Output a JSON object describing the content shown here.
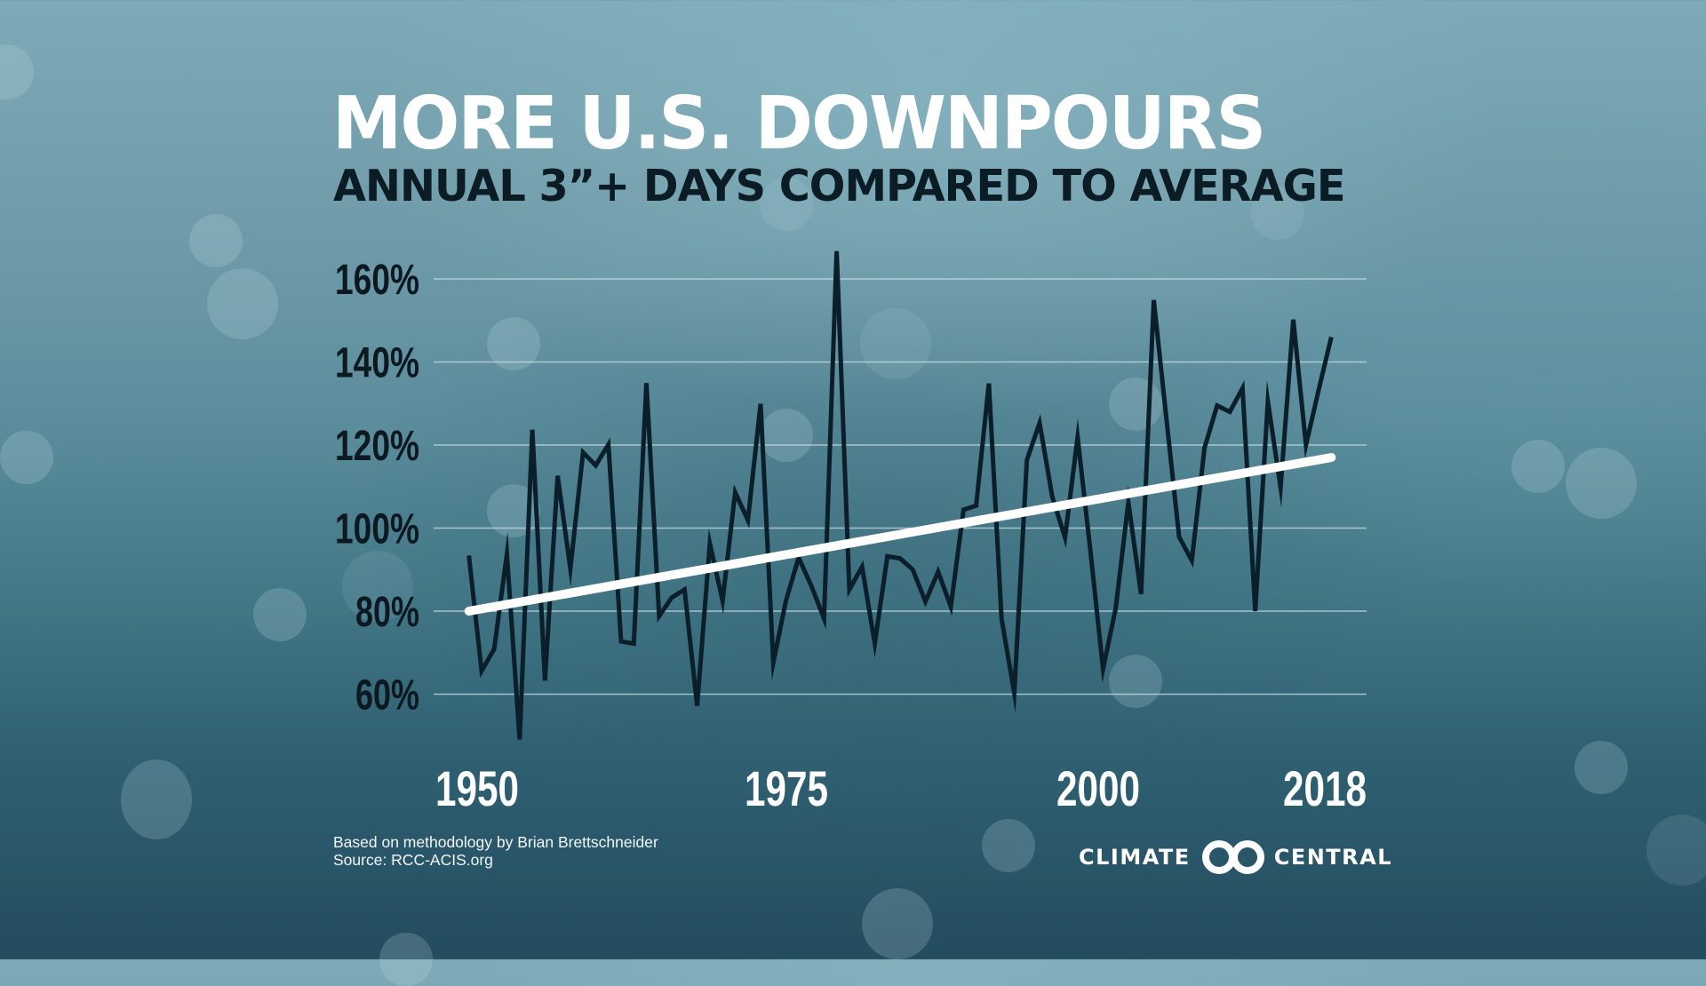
{
  "header": {
    "title": "MORE U.S. DOWNPOURS",
    "subtitle": "ANNUAL 3”+ DAYS COMPARED TO AVERAGE"
  },
  "footer": {
    "methodology": "Based on methodology by Brian Brettschneider",
    "source": "Source: RCC-ACIS.org"
  },
  "logo": {
    "left_text": "CLIMATE",
    "right_text": "CENTRAL",
    "icon": "climate-central-rings-icon"
  },
  "colors": {
    "series_line": "#0b1f2a",
    "trend_line": "#ffffff",
    "gridline": "#c8dce2",
    "ytick_text": "#0d1921",
    "xtick_text": "#ffffff"
  },
  "chart_data": {
    "type": "line",
    "title": "MORE U.S. DOWNPOURS",
    "subtitle": "ANNUAL 3”+ DAYS COMPARED TO AVERAGE",
    "xlabel": "",
    "ylabel": "",
    "grid": true,
    "legend": "none",
    "xlim": [
      1950,
      2018
    ],
    "ylim": [
      48,
      168
    ],
    "x_ticks": [
      1950,
      1975,
      2000,
      2018
    ],
    "x_tick_labels": [
      "1950",
      "1975",
      "2000",
      "2018"
    ],
    "y_ticks": [
      60,
      80,
      100,
      120,
      140,
      160
    ],
    "y_tick_labels": [
      "60%",
      "80%",
      "100%",
      "120%",
      "140%",
      "160%"
    ],
    "x": [
      1950,
      1951,
      1952,
      1953,
      1954,
      1955,
      1956,
      1957,
      1958,
      1959,
      1960,
      1961,
      1962,
      1963,
      1964,
      1965,
      1966,
      1967,
      1968,
      1969,
      1970,
      1971,
      1972,
      1973,
      1974,
      1975,
      1976,
      1977,
      1978,
      1979,
      1980,
      1981,
      1982,
      1983,
      1984,
      1985,
      1986,
      1987,
      1988,
      1989,
      1990,
      1991,
      1992,
      1993,
      1994,
      1995,
      1996,
      1997,
      1998,
      1999,
      2000,
      2001,
      2002,
      2003,
      2004,
      2005,
      2006,
      2007,
      2008,
      2009,
      2010,
      2011,
      2012,
      2013,
      2014,
      2015,
      2016,
      2017,
      2018
    ],
    "series": [
      {
        "name": "Annual 3\"+ days (% of average)",
        "values": [
          93.4,
          65.6,
          70.9,
          93.8,
          49.1,
          123.7,
          63.3,
          112.6,
          90.2,
          118.2,
          115.1,
          120.1,
          72.7,
          72.2,
          134.9,
          78.8,
          83.3,
          85.2,
          57.2,
          96.3,
          82.5,
          108.6,
          101.9,
          129.9,
          67.6,
          82.5,
          92.9,
          86.1,
          78.2,
          166.7,
          85.2,
          90.7,
          72.2,
          93.2,
          92.7,
          90.0,
          82.3,
          89.5,
          81.1,
          104.4,
          105.4,
          134.8,
          78.2,
          60.3,
          116.4,
          125.3,
          107.5,
          97.7,
          121.9,
          94.7,
          66.1,
          80.7,
          106.2,
          84.1,
          154.9,
          126.4,
          97.9,
          92.2,
          119.3,
          129.5,
          128.0,
          133.7,
          80.0,
          130.5,
          109.8,
          150.2,
          120.0,
          133.2,
          146.0
        ]
      },
      {
        "name": "Linear trend",
        "x": [
          1950,
          2018
        ],
        "values": [
          80.0,
          117.0
        ]
      }
    ]
  }
}
